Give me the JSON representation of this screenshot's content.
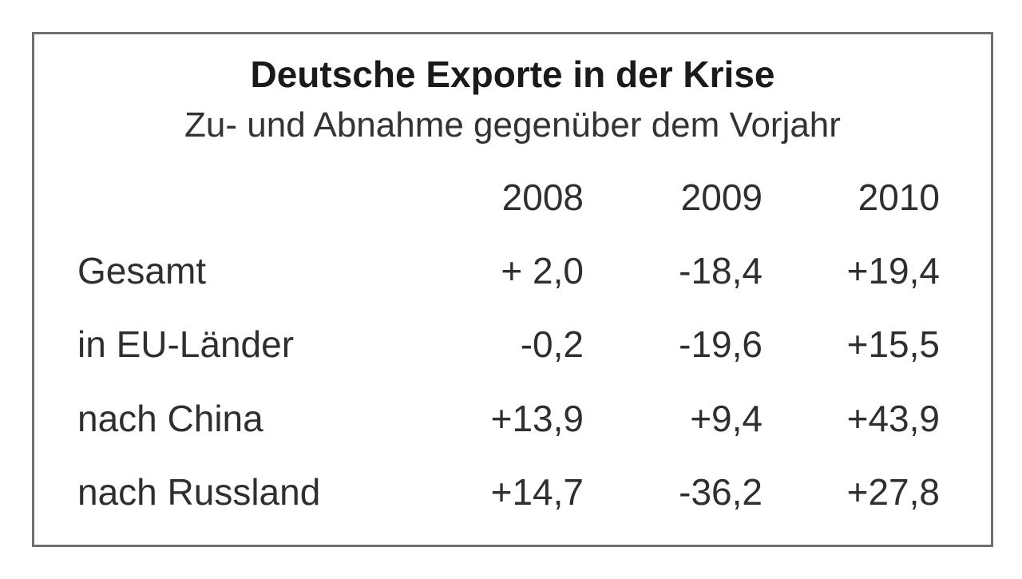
{
  "chart_data": {
    "type": "table",
    "title": "Deutsche Exporte in der Krise",
    "subtitle": "Zu- und Abnahme gegenüber dem Vorjahr",
    "columns": [
      "2008",
      "2009",
      "2010"
    ],
    "rows": [
      {
        "label": "Gesamt",
        "values": [
          "+ 2,0",
          "-18,4",
          "+19,4"
        ]
      },
      {
        "label": "in EU-Länder",
        "values": [
          "-0,2",
          "-19,6",
          "+15,5"
        ]
      },
      {
        "label": "nach China",
        "values": [
          "+13,9",
          "+9,4",
          "+43,9"
        ]
      },
      {
        "label": "nach Russland",
        "values": [
          "+14,7",
          "-36,2",
          "+27,8"
        ]
      }
    ]
  }
}
